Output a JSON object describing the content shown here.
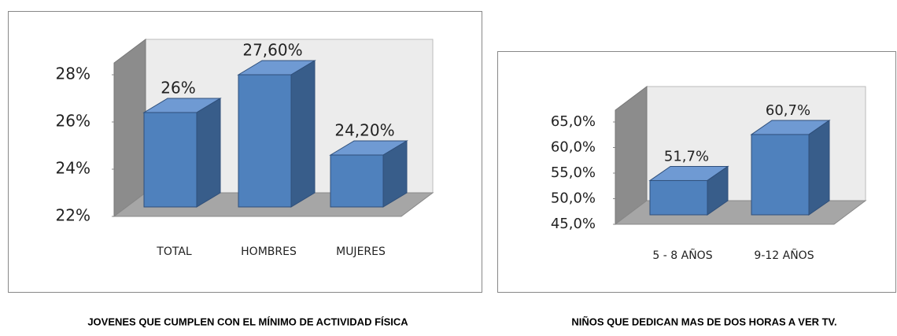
{
  "chart_data": [
    {
      "type": "bar3d",
      "title": "JOVENES QUE CUMPLEN CON EL MÍNIMO DE ACTIVIDAD FÍSICA",
      "categories": [
        "TOTAL",
        "HOMBRES",
        "MUJERES"
      ],
      "values": [
        26,
        27.6,
        24.2
      ],
      "value_labels": [
        "26%",
        "27,60%",
        "24,20%"
      ],
      "color": "#4f81bd",
      "ylim": [
        22,
        28
      ],
      "yticks": [
        {
          "value": 22,
          "label": "22%"
        },
        {
          "value": 24,
          "label": "24%"
        },
        {
          "value": 26,
          "label": "26%"
        },
        {
          "value": 28,
          "label": "28%"
        }
      ]
    },
    {
      "type": "bar3d",
      "title": "NIÑOS QUE DEDICAN MAS DE DOS HORAS A VER TV.",
      "categories": [
        "5 - 8 AÑOS",
        "9-12 AÑOS"
      ],
      "values": [
        51.7,
        60.7
      ],
      "value_labels": [
        "51,7%",
        "60,7%"
      ],
      "color": "#4f81bd",
      "ylim": [
        45,
        65
      ],
      "yticks": [
        {
          "value": 45,
          "label": "45,0%"
        },
        {
          "value": 50,
          "label": "50,0%"
        },
        {
          "value": 55,
          "label": "55,0%"
        },
        {
          "value": 60,
          "label": "60,0%"
        },
        {
          "value": 65,
          "label": "65,0%"
        }
      ]
    }
  ]
}
